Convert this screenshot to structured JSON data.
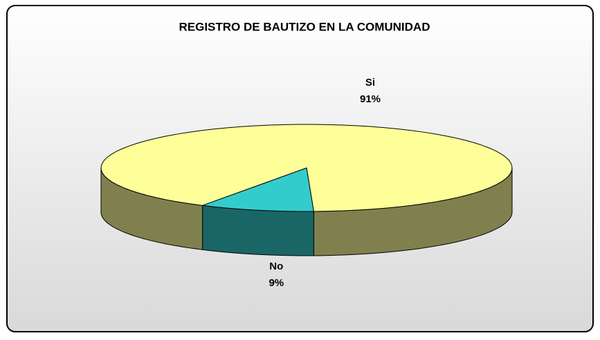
{
  "chart_data": {
    "type": "pie",
    "title": "REGISTRO DE BAUTIZO EN LA COMUNIDAD",
    "categories": [
      "Si",
      "No"
    ],
    "values": [
      91,
      9
    ],
    "value_labels": [
      "91%",
      "9%"
    ],
    "colors": [
      "#ffff99",
      "#33cccc"
    ],
    "side_colors": [
      "#80804f",
      "#1a6666"
    ]
  }
}
